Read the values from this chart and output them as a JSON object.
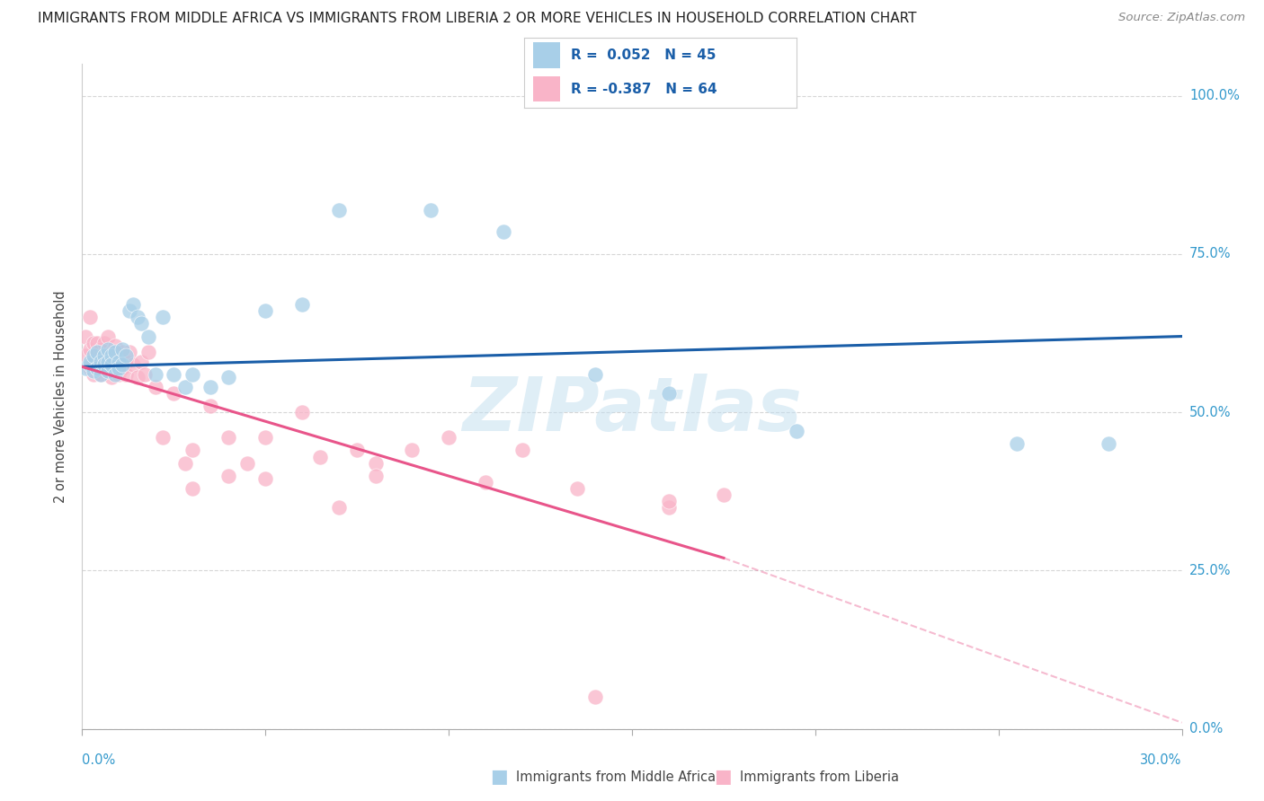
{
  "title": "IMMIGRANTS FROM MIDDLE AFRICA VS IMMIGRANTS FROM LIBERIA 2 OR MORE VEHICLES IN HOUSEHOLD CORRELATION CHART",
  "source": "Source: ZipAtlas.com",
  "ylabel": "2 or more Vehicles in Household",
  "r_blue": 0.052,
  "n_blue": 45,
  "r_pink": -0.387,
  "n_pink": 64,
  "blue_color": "#a8cfe8",
  "pink_color": "#f9b4c8",
  "blue_line_color": "#1a5ea8",
  "pink_line_color": "#e8558a",
  "watermark": "ZIPatlas",
  "blue_scatter_x": [
    0.001,
    0.002,
    0.002,
    0.003,
    0.003,
    0.004,
    0.004,
    0.005,
    0.005,
    0.006,
    0.006,
    0.007,
    0.007,
    0.007,
    0.008,
    0.008,
    0.009,
    0.009,
    0.01,
    0.01,
    0.011,
    0.011,
    0.012,
    0.013,
    0.014,
    0.015,
    0.016,
    0.018,
    0.02,
    0.022,
    0.025,
    0.028,
    0.03,
    0.035,
    0.04,
    0.05,
    0.06,
    0.07,
    0.095,
    0.115,
    0.14,
    0.16,
    0.195,
    0.255,
    0.28
  ],
  "blue_scatter_y": [
    0.57,
    0.575,
    0.58,
    0.565,
    0.59,
    0.57,
    0.595,
    0.58,
    0.56,
    0.59,
    0.575,
    0.6,
    0.565,
    0.58,
    0.59,
    0.575,
    0.595,
    0.56,
    0.58,
    0.57,
    0.6,
    0.575,
    0.59,
    0.66,
    0.67,
    0.65,
    0.64,
    0.62,
    0.56,
    0.65,
    0.56,
    0.54,
    0.56,
    0.54,
    0.555,
    0.66,
    0.67,
    0.82,
    0.82,
    0.785,
    0.56,
    0.53,
    0.47,
    0.45,
    0.45
  ],
  "pink_scatter_x": [
    0.001,
    0.001,
    0.002,
    0.002,
    0.002,
    0.003,
    0.003,
    0.003,
    0.004,
    0.004,
    0.004,
    0.005,
    0.005,
    0.005,
    0.006,
    0.006,
    0.006,
    0.007,
    0.007,
    0.007,
    0.008,
    0.008,
    0.008,
    0.009,
    0.009,
    0.01,
    0.01,
    0.011,
    0.011,
    0.012,
    0.012,
    0.013,
    0.014,
    0.015,
    0.016,
    0.017,
    0.018,
    0.02,
    0.022,
    0.025,
    0.028,
    0.03,
    0.035,
    0.04,
    0.045,
    0.05,
    0.06,
    0.065,
    0.075,
    0.08,
    0.09,
    0.1,
    0.11,
    0.12,
    0.135,
    0.16,
    0.175,
    0.07,
    0.05,
    0.08,
    0.03,
    0.04,
    0.16,
    0.14
  ],
  "pink_scatter_y": [
    0.62,
    0.59,
    0.65,
    0.6,
    0.57,
    0.61,
    0.58,
    0.56,
    0.595,
    0.57,
    0.61,
    0.58,
    0.6,
    0.56,
    0.595,
    0.575,
    0.61,
    0.565,
    0.59,
    0.62,
    0.58,
    0.555,
    0.595,
    0.57,
    0.605,
    0.58,
    0.56,
    0.595,
    0.57,
    0.58,
    0.56,
    0.595,
    0.575,
    0.555,
    0.58,
    0.56,
    0.595,
    0.54,
    0.46,
    0.53,
    0.42,
    0.44,
    0.51,
    0.46,
    0.42,
    0.46,
    0.5,
    0.43,
    0.44,
    0.42,
    0.44,
    0.46,
    0.39,
    0.44,
    0.38,
    0.35,
    0.37,
    0.35,
    0.395,
    0.4,
    0.38,
    0.4,
    0.36,
    0.05
  ],
  "blue_line_x0": 0.0,
  "blue_line_y0": 0.572,
  "blue_line_x1": 0.3,
  "blue_line_y1": 0.62,
  "pink_line_x0": 0.0,
  "pink_line_y0": 0.572,
  "pink_line_x1_solid": 0.175,
  "pink_line_y1_solid": 0.27,
  "pink_line_x1_dash": 0.3,
  "pink_line_y1_dash": 0.01,
  "xmin": 0.0,
  "xmax": 0.3,
  "ymin": 0.0,
  "ymax": 1.05,
  "xticks": [
    0.0,
    0.05,
    0.1,
    0.15,
    0.2,
    0.25,
    0.3
  ],
  "yticks": [
    0.0,
    0.25,
    0.5,
    0.75,
    1.0
  ],
  "ytick_labels": [
    "0.0%",
    "25.0%",
    "50.0%",
    "75.0%",
    "100.0%"
  ],
  "grid_color": "#cccccc",
  "title_fontsize": 11,
  "source_fontsize": 9.5,
  "axis_label_color": "#3399cc",
  "legend_text_color": "#1a5ea8"
}
